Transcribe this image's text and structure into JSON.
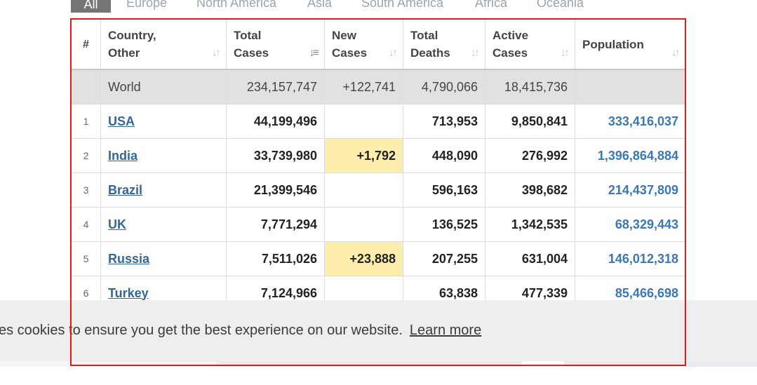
{
  "tabs": {
    "active": "All",
    "items": [
      "Europe",
      "North America",
      "Asia",
      "South America",
      "Africa",
      "Oceania"
    ]
  },
  "table": {
    "headers": {
      "rank": "#",
      "country_l1": "Country,",
      "country_l2": "Other",
      "total_cases_l1": "Total",
      "total_cases_l2": "Cases",
      "new_cases_l1": "New",
      "new_cases_l2": "Cases",
      "total_deaths_l1": "Total",
      "total_deaths_l2": "Deaths",
      "active_cases_l1": "Active",
      "active_cases_l2": "Cases",
      "population": "Population"
    },
    "world": {
      "name": "World",
      "total_cases": "234,157,747",
      "new_cases": "+122,741",
      "total_deaths": "4,790,066",
      "active_cases": "18,415,736",
      "population": ""
    },
    "rows": [
      {
        "rank": "1",
        "country": "USA",
        "total_cases": "44,199,496",
        "new_cases": "",
        "total_deaths": "713,953",
        "active_cases": "9,850,841",
        "population": "333,416,037"
      },
      {
        "rank": "2",
        "country": "India",
        "total_cases": "33,739,980",
        "new_cases": "+1,792",
        "total_deaths": "448,090",
        "active_cases": "276,992",
        "population": "1,396,864,884"
      },
      {
        "rank": "3",
        "country": "Brazil",
        "total_cases": "21,399,546",
        "new_cases": "",
        "total_deaths": "596,163",
        "active_cases": "398,682",
        "population": "214,437,809"
      },
      {
        "rank": "4",
        "country": "UK",
        "total_cases": "7,771,294",
        "new_cases": "",
        "total_deaths": "136,525",
        "active_cases": "1,342,535",
        "population": "68,329,443"
      },
      {
        "rank": "5",
        "country": "Russia",
        "total_cases": "7,511,026",
        "new_cases": "+23,888",
        "total_deaths": "207,255",
        "active_cases": "631,004",
        "population": "146,012,318"
      },
      {
        "rank": "6",
        "country": "Turkey",
        "total_cases": "7,124,966",
        "new_cases": "",
        "total_deaths": "63,838",
        "active_cases": "477,339",
        "population": "85,466,698"
      }
    ]
  },
  "cookie_banner": {
    "text": "es cookies to ensure you get the best experience on our website.",
    "link": "Learn more"
  },
  "colors": {
    "highlight_border": "#e11b1b",
    "new_cases_highlight": "#fdeeae",
    "link": "#336699",
    "population": "#3a77b3",
    "active_tab": "#757575"
  }
}
